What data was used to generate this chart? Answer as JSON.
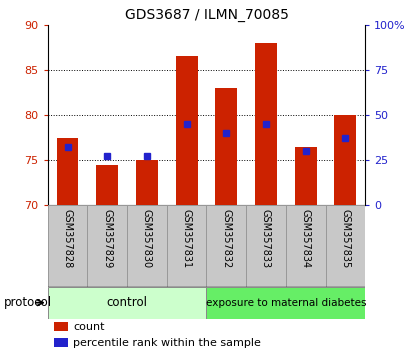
{
  "title": "GDS3687 / ILMN_70085",
  "samples": [
    "GSM357828",
    "GSM357829",
    "GSM357830",
    "GSM357831",
    "GSM357832",
    "GSM357833",
    "GSM357834",
    "GSM357835"
  ],
  "count_values": [
    77.5,
    74.5,
    75.0,
    86.5,
    83.0,
    88.0,
    76.5,
    80.0
  ],
  "percentile_values": [
    76.5,
    75.5,
    75.5,
    79.0,
    78.0,
    79.0,
    76.0,
    77.5
  ],
  "y_min": 70,
  "y_max": 90,
  "y_ticks": [
    70,
    75,
    80,
    85,
    90
  ],
  "right_y_ticks": [
    0,
    25,
    50,
    75,
    100
  ],
  "right_y_labels": [
    "0",
    "25",
    "50",
    "75",
    "100%"
  ],
  "bar_color": "#cc2200",
  "percentile_color": "#2222cc",
  "bar_width": 0.55,
  "control_color": "#ccffcc",
  "diabetes_color": "#66ee66",
  "control_label": "control",
  "diabetes_label": "exposure to maternal diabetes",
  "protocol_label": "protocol",
  "legend_count_label": "count",
  "legend_percentile_label": "percentile rank within the sample",
  "grid_yticks": [
    75,
    80,
    85
  ],
  "tick_color_left": "#cc2200",
  "tick_color_right": "#2222cc",
  "xlabel_bg_color": "#c8c8c8",
  "xlabel_border_color": "#999999"
}
